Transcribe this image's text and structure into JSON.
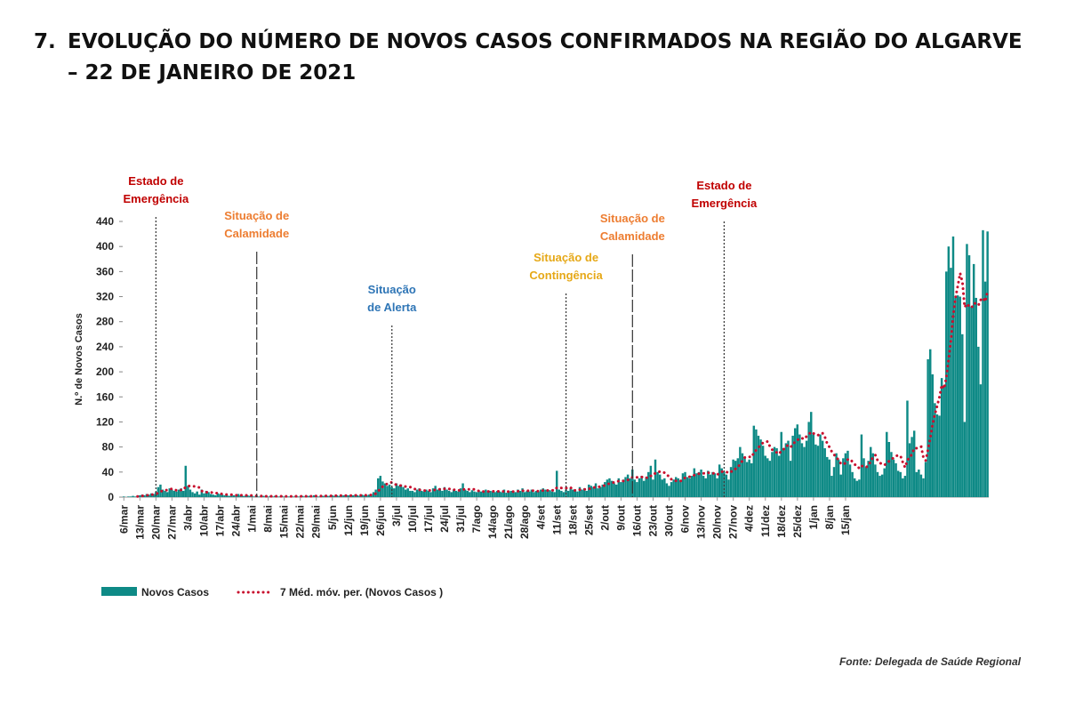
{
  "heading": {
    "number": "7.",
    "text": "EVOLUÇÃO DO NÚMERO DE NOVOS CASOS CONFIRMADOS NA REGIÃO DO ALGARVE – 22 DE JANEIRO DE 2021"
  },
  "source": "Fonte: Delegada de Saúde Regional",
  "chart_data": {
    "type": "bar",
    "ylabel": "N.º de Novos Casos",
    "ylim": [
      0,
      440
    ],
    "yticks": [
      0,
      40,
      80,
      120,
      160,
      200,
      240,
      280,
      320,
      360,
      400,
      440
    ],
    "x_tick_labels": [
      "6/mar",
      "13/mar",
      "20/mar",
      "27/mar",
      "3/abr",
      "10/abr",
      "17/abr",
      "24/abr",
      "1/mai",
      "8/mai",
      "15/mai",
      "22/mai",
      "29/mai",
      "5/jun",
      "12/jun",
      "19/jun",
      "26/jun",
      "3/jul",
      "10/jul",
      "17/jul",
      "24/jul",
      "31/jul",
      "7/ago",
      "14/ago",
      "21/ago",
      "28/ago",
      "4/set",
      "11/set",
      "18/set",
      "25/set",
      "2/out",
      "9/out",
      "16/out",
      "23/out",
      "30/out",
      "6/nov",
      "13/nov",
      "20/nov",
      "27/nov",
      "4/dez",
      "11/dez",
      "18/dez",
      "25/dez",
      "1/jan",
      "8/jan",
      "15/jan"
    ],
    "x_start": "2020-03-06",
    "grid": false,
    "legend_position": "bottom-left",
    "colors": {
      "bars": "#0e8a86",
      "moving_average": "#c8102e"
    },
    "series": [
      {
        "name": "Novos Casos",
        "kind": "bar",
        "values": [
          1,
          0,
          1,
          1,
          2,
          1,
          2,
          3,
          4,
          3,
          5,
          4,
          6,
          5,
          8,
          16,
          20,
          12,
          10,
          8,
          14,
          12,
          10,
          9,
          12,
          14,
          10,
          50,
          18,
          12,
          8,
          6,
          9,
          4,
          12,
          6,
          10,
          8,
          5,
          4,
          3,
          6,
          5,
          4,
          3,
          3,
          2,
          4,
          3,
          2,
          5,
          3,
          2,
          2,
          3,
          2,
          2,
          1,
          2,
          1,
          1,
          2,
          1,
          1,
          2,
          1,
          2,
          1,
          1,
          2,
          1,
          1,
          1,
          2,
          1,
          2,
          1,
          1,
          2,
          1,
          2,
          2,
          1,
          3,
          2,
          1,
          2,
          2,
          3,
          2,
          2,
          3,
          2,
          3,
          2,
          3,
          3,
          2,
          3,
          2,
          3,
          4,
          3,
          2,
          4,
          3,
          3,
          4,
          5,
          8,
          12,
          30,
          34,
          25,
          22,
          18,
          20,
          16,
          14,
          22,
          18,
          20,
          16,
          12,
          14,
          10,
          10,
          8,
          12,
          14,
          10,
          9,
          12,
          10,
          8,
          14,
          18,
          12,
          14,
          10,
          16,
          12,
          10,
          8,
          12,
          10,
          9,
          14,
          22,
          12,
          10,
          8,
          11,
          9,
          8,
          10,
          9,
          8,
          12,
          8,
          10,
          9,
          8,
          10,
          9,
          8,
          12,
          7,
          8,
          10,
          9,
          8,
          12,
          10,
          14,
          8,
          10,
          9,
          12,
          8,
          10,
          9,
          12,
          14,
          12,
          10,
          11,
          9,
          8,
          42,
          12,
          10,
          8,
          12,
          10,
          14,
          12,
          10,
          9,
          16,
          12,
          14,
          10,
          20,
          18,
          16,
          22,
          14,
          16,
          20,
          24,
          28,
          30,
          26,
          22,
          20,
          30,
          24,
          28,
          32,
          36,
          30,
          44,
          28,
          24,
          30,
          34,
          26,
          32,
          40,
          50,
          28,
          60,
          40,
          36,
          28,
          30,
          22,
          18,
          24,
          28,
          32,
          30,
          26,
          38,
          40,
          32,
          30,
          34,
          46,
          38,
          40,
          44,
          34,
          30,
          42,
          36,
          40,
          38,
          30,
          52,
          46,
          40,
          36,
          28,
          48,
          60,
          58,
          62,
          80,
          70,
          64,
          56,
          60,
          54,
          114,
          108,
          98,
          92,
          82,
          66,
          62,
          58,
          72,
          80,
          78,
          66,
          104,
          78,
          86,
          90,
          58,
          98,
          110,
          116,
          100,
          86,
          80,
          90,
          120,
          136,
          100,
          84,
          82,
          100,
          90,
          78,
          64,
          60,
          34,
          48,
          70,
          60,
          36,
          62,
          70,
          74,
          52,
          40,
          30,
          26,
          28,
          100,
          62,
          48,
          58,
          80,
          70,
          52,
          40,
          34,
          36,
          46,
          104,
          88,
          72,
          60,
          54,
          42,
          40,
          30,
          34,
          154,
          86,
          96,
          106,
          40,
          44,
          36,
          30,
          56,
          220,
          236,
          196,
          150,
          132,
          130,
          190,
          178,
          360,
          400,
          366,
          416,
          318,
          322,
          320,
          260,
          120,
          404,
          386,
          304,
          372,
          318,
          240,
          180,
          426,
          344,
          424
        ]
      },
      {
        "name": "7 Méd. móv. per. (Novos Casos )",
        "kind": "moving-average"
      }
    ],
    "event_markers": [
      {
        "date_label": "20/mar",
        "day": 14,
        "label_lines": [
          "Estado de",
          "Emergência"
        ],
        "color": "#c00000",
        "style": "dotted"
      },
      {
        "date_label": "3/mai",
        "day": 58,
        "label_lines": [
          "Situação de",
          "Calamidade"
        ],
        "color": "#ed7d31",
        "style": "dash"
      },
      {
        "date_label": "1/jul",
        "day": 117,
        "label_lines": [
          "Situação",
          "de Alerta"
        ],
        "color": "#2e75b6",
        "style": "dotted"
      },
      {
        "date_label": "15/set",
        "day": 193,
        "label_lines": [
          "Situação de",
          "Contingência"
        ],
        "color": "#e6a817",
        "style": "dotted"
      },
      {
        "date_label": "14/out",
        "day": 222,
        "label_lines": [
          "Situação de",
          "Calamidade"
        ],
        "color": "#ed7d31",
        "style": "dash"
      },
      {
        "date_label": "9/nov",
        "day": 262,
        "label_lines": [
          "Estado de",
          "Emergência"
        ],
        "color": "#c00000",
        "style": "dotted"
      }
    ]
  }
}
